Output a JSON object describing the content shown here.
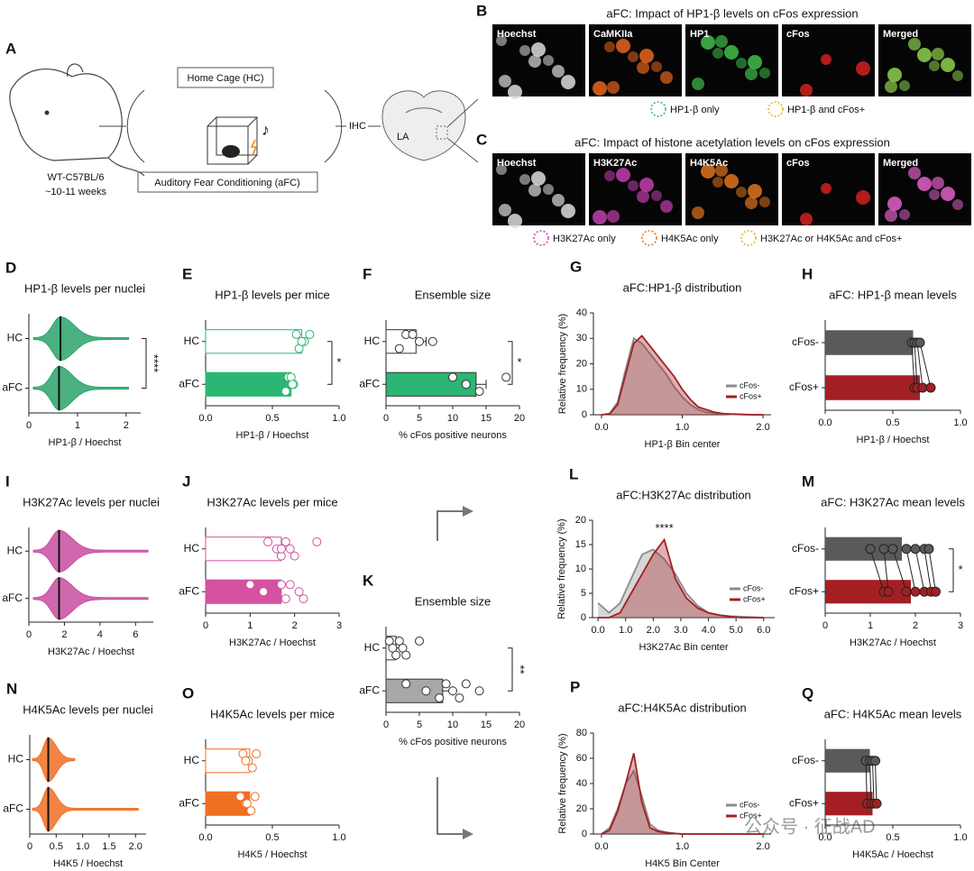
{
  "schematic": {
    "panel": "A",
    "mouse": [
      "WT-C57BL/6",
      "~10-11 weeks"
    ],
    "home_cage": "Home Cage (HC)",
    "afc": "Auditory Fear Conditioning (aFC)",
    "ihc": "IHC",
    "la": "LA"
  },
  "micrographs": [
    {
      "panel": "B",
      "title": "aFC: Impact of HP1-β levels on cFos expression",
      "labels": [
        "Hoechst",
        "CaMKIIa",
        "HP1",
        "cFos",
        "Merged"
      ],
      "legend": [
        "HP1-β only",
        "HP1-β and cFos+"
      ]
    },
    {
      "panel": "C",
      "title": "aFC: Impact of histone acetylation levels on cFos expression",
      "labels": [
        "Hoechst",
        "H3K27Ac",
        "H4K5Ac",
        "cFos",
        "Merged"
      ],
      "legend": [
        "H3K27Ac only",
        "H4K5Ac only",
        "H3K27Ac or H4K5Ac and cFos+"
      ]
    }
  ],
  "watermark": "公众号 · 征战AD",
  "chart_data": [
    {
      "panel": "D",
      "type": "violin",
      "title": "HP1-β levels per nuclei",
      "categories": [
        "HC",
        "aFC"
      ],
      "medians": [
        0.65,
        0.62
      ],
      "extents": [
        2.05,
        2.05
      ],
      "color": "#2ca36b",
      "xlabel": "HP1-β / Hoechst",
      "xlim": [
        0,
        2.3
      ],
      "xticks": [
        0,
        1,
        2
      ],
      "annotation": "****"
    },
    {
      "panel": "E",
      "type": "bar",
      "title": "HP1-β levels per mice",
      "categories": [
        "HC",
        "aFC"
      ],
      "values": [
        0.72,
        0.64
      ],
      "colors": [
        "#ffffff",
        "#2bb673"
      ],
      "edgecolor": "#2bb673",
      "points": [
        [
          0.68,
          0.74,
          0.7,
          0.78,
          0.72
        ],
        [
          0.62,
          0.66,
          0.6,
          0.64,
          0.65
        ]
      ],
      "xlabel": "HP1-β / Hoechst",
      "xlim": [
        0,
        1
      ],
      "xticks": [
        {
          "value": 0,
          "label": "0.0"
        },
        0.5,
        {
          "value": 1,
          "label": "1.0"
        }
      ],
      "annotation": "*"
    },
    {
      "panel": "F",
      "type": "bar",
      "title": "Ensemble size",
      "categories": [
        "HC",
        "aFC"
      ],
      "values": [
        4.5,
        13.5
      ],
      "errors": [
        1.5,
        1.5
      ],
      "colors": [
        "#ffffff",
        "#2bb673"
      ],
      "edgecolor": "#333333",
      "points": [
        [
          3,
          7,
          2,
          4,
          5
        ],
        [
          10,
          12,
          14,
          18
        ]
      ],
      "xlabel": "% cFos positive neurons",
      "xlim": [
        0,
        20
      ],
      "xticks": [
        0,
        5,
        10,
        15,
        20
      ],
      "annotation": "*"
    },
    {
      "panel": "G",
      "type": "area",
      "title": "aFC:HP1-β distribution",
      "x": [
        0,
        0.1,
        0.2,
        0.3,
        0.4,
        0.5,
        0.6,
        0.7,
        0.8,
        0.9,
        1.0,
        1.1,
        1.2,
        1.3,
        1.4,
        1.5,
        1.6,
        1.7,
        1.8,
        1.9,
        2.0
      ],
      "series": [
        {
          "name": "cFos-",
          "color": "#8c8c8c",
          "values": [
            0,
            0.5,
            5,
            18,
            30,
            28,
            24,
            20,
            16,
            11,
            7,
            4,
            2,
            1,
            0.6,
            0.3,
            0.2,
            0.1,
            0,
            0,
            0
          ]
        },
        {
          "name": "cFos+",
          "color": "#a31f24",
          "values": [
            0,
            0.3,
            4,
            16,
            28,
            31,
            27,
            23,
            19,
            15,
            10,
            6,
            3,
            2,
            1,
            0.5,
            0.3,
            0.2,
            0.1,
            0,
            0
          ]
        }
      ],
      "xlabel": "HP1-β Bin center",
      "ylabel": "Relative frequency (%)",
      "xlim": [
        -0.1,
        2.1
      ],
      "ylim": [
        0,
        40
      ],
      "xticks": [
        {
          "value": 0,
          "label": "0.0"
        },
        {
          "value": 1,
          "label": "1.0"
        },
        {
          "value": 2,
          "label": "2.0"
        }
      ],
      "yticks": [
        0,
        10,
        20,
        30,
        40
      ],
      "legend": "lower right"
    },
    {
      "panel": "H",
      "type": "paired",
      "title": "aFC: HP1-β mean levels",
      "categories": [
        "cFos-",
        "cFos+"
      ],
      "values": [
        0.65,
        0.7
      ],
      "colors": [
        "#5a5a5a",
        "#a31f24"
      ],
      "points": [
        [
          0.64,
          0.66,
          0.68,
          0.7
        ],
        [
          0.66,
          0.68,
          0.72,
          0.78
        ]
      ],
      "xlabel": "HP1-β / Hoechst",
      "xlim": [
        0,
        1
      ],
      "xticks": [
        {
          "value": 0,
          "label": "0.0"
        },
        0.5,
        {
          "value": 1,
          "label": "1.0"
        }
      ]
    },
    {
      "panel": "I",
      "type": "violin",
      "title": "H3K27Ac levels per nuclei",
      "categories": [
        "HC",
        "aFC"
      ],
      "medians": [
        1.7,
        1.7
      ],
      "extents": [
        6.7,
        6.7
      ],
      "color": "#c84ea0",
      "xlabel": "H3K27Ac / Hoechst",
      "xlim": [
        0,
        7
      ],
      "xticks": [
        0,
        2,
        4,
        6
      ]
    },
    {
      "panel": "J",
      "type": "bar",
      "title": "H3K27Ac levels per mice",
      "categories": [
        "HC",
        "aFC"
      ],
      "values": [
        1.7,
        1.7
      ],
      "colors": [
        "#ffffff",
        "#d4529f"
      ],
      "edgecolor": "#d4529f",
      "points": [
        [
          1.4,
          1.6,
          1.7,
          1.8,
          1.9,
          2.0,
          2.5,
          1.7
        ],
        [
          1.0,
          1.3,
          1.8,
          1.9,
          2.1,
          2.2,
          1.7
        ]
      ],
      "xlabel": "H3K27Ac / Hoechst",
      "xlim": [
        0,
        3
      ],
      "xticks": [
        0,
        1,
        2,
        3
      ]
    },
    {
      "panel": "K",
      "type": "bar",
      "title": "Ensemble size",
      "categories": [
        "HC",
        "aFC"
      ],
      "values": [
        1.5,
        8.5
      ],
      "errors": [
        0.8,
        1.5
      ],
      "colors": [
        "#ffffff",
        "#a8a8a8"
      ],
      "edgecolor": "#333333",
      "points": [
        [
          0.5,
          1,
          1.5,
          2,
          2.5,
          3,
          5
        ],
        [
          3,
          6,
          8,
          9,
          10,
          11,
          12,
          14
        ]
      ],
      "xlabel": "% cFos positive neurons",
      "xlim": [
        0,
        20
      ],
      "xticks": [
        0,
        5,
        10,
        15,
        20
      ],
      "annotation": "**"
    },
    {
      "panel": "L",
      "type": "area",
      "title": "aFC:H3K27Ac distribution",
      "x": [
        0,
        0.4,
        0.8,
        1.2,
        1.6,
        2.0,
        2.4,
        2.8,
        3.2,
        3.6,
        4.0,
        4.4,
        4.8,
        5.2,
        5.6,
        6.0
      ],
      "series": [
        {
          "name": "cFos-",
          "color": "#8c8c8c",
          "values": [
            3,
            1,
            3,
            8,
            13,
            14,
            12,
            9,
            5,
            2.5,
            1,
            0.5,
            0.3,
            0.2,
            0.1,
            0
          ]
        },
        {
          "name": "cFos+",
          "color": "#a31f24",
          "values": [
            0,
            0,
            1,
            5,
            9,
            13,
            16,
            8,
            4,
            2,
            1,
            0.5,
            0.2,
            0,
            0,
            0
          ]
        }
      ],
      "xlabel": "H3K27Ac Bin center",
      "ylabel": "Relative frequency (%)",
      "xlim": [
        -0.2,
        6.4
      ],
      "ylim": [
        0,
        20
      ],
      "xticks": [
        {
          "value": 0,
          "label": "0.0"
        },
        {
          "value": 1,
          "label": "1.0"
        },
        {
          "value": 2,
          "label": "2.0"
        },
        {
          "value": 3,
          "label": "3.0"
        },
        {
          "value": 4,
          "label": "4.0"
        },
        {
          "value": 5,
          "label": "5.0"
        },
        {
          "value": 6,
          "label": "6.0"
        }
      ],
      "yticks": [
        0,
        5,
        10,
        15,
        20
      ],
      "legend": "lower right",
      "annotation": "****"
    },
    {
      "panel": "M",
      "type": "paired",
      "title": "aFC: H3K27Ac mean levels",
      "categories": [
        "cFos-",
        "cFos+"
      ],
      "values": [
        1.7,
        1.9
      ],
      "colors": [
        "#5a5a5a",
        "#a31f24"
      ],
      "points": [
        [
          1.0,
          1.3,
          1.5,
          1.8,
          2.0,
          2.2,
          2.3
        ],
        [
          1.3,
          1.4,
          1.8,
          2.0,
          2.2,
          2.35,
          2.45
        ]
      ],
      "xlabel": "H3K27Ac / Hoechst",
      "xlim": [
        0,
        3
      ],
      "xticks": [
        0,
        1,
        2,
        3
      ],
      "annotation": "*"
    },
    {
      "panel": "N",
      "type": "violin",
      "title": "H4K5Ac levels per nuclei",
      "categories": [
        "HC",
        "aFC"
      ],
      "medians": [
        0.35,
        0.35
      ],
      "extents": [
        0.85,
        2.05
      ],
      "color": "#f07023",
      "xlabel": "H4K5 / Hoechst",
      "xlim": [
        0,
        2.2
      ],
      "xticks": [
        0,
        0.5,
        {
          "value": 1,
          "label": "1.0"
        },
        1.5,
        {
          "value": 2,
          "label": "2.0"
        }
      ]
    },
    {
      "panel": "O",
      "type": "bar",
      "title": "H4K5Ac levels per mice",
      "categories": [
        "HC",
        "aFC"
      ],
      "values": [
        0.33,
        0.33
      ],
      "colors": [
        "#ffffff",
        "#f07023"
      ],
      "edgecolor": "#f07023",
      "points": [
        [
          0.28,
          0.32,
          0.35,
          0.38,
          0.3
        ],
        [
          0.26,
          0.3,
          0.34,
          0.37,
          0.31
        ]
      ],
      "xlabel": "H4K5 / Hoechst",
      "xlim": [
        0,
        1
      ],
      "xticks": [
        {
          "value": 0,
          "label": "0.0"
        },
        0.5,
        {
          "value": 1,
          "label": "1.0"
        }
      ]
    },
    {
      "panel": "P",
      "type": "area",
      "title": "aFC:H4K5Ac distribution",
      "x": [
        0,
        0.1,
        0.2,
        0.3,
        0.4,
        0.5,
        0.6,
        0.7,
        0.8,
        0.9,
        1.0,
        1.1,
        1.2,
        1.3,
        1.4,
        1.5,
        1.6,
        1.7,
        1.8,
        1.9,
        2.0
      ],
      "series": [
        {
          "name": "cFos-",
          "color": "#8c8c8c",
          "values": [
            0,
            5,
            20,
            40,
            50,
            30,
            8,
            3,
            1.5,
            0.5,
            0,
            0,
            0,
            0,
            0,
            0,
            0,
            0,
            0,
            0,
            0
          ]
        },
        {
          "name": "cFos+",
          "color": "#a31f24",
          "values": [
            0,
            3,
            18,
            40,
            64,
            25,
            5,
            2,
            1,
            0.5,
            0,
            0,
            0,
            0,
            0,
            0,
            0,
            0,
            0,
            0,
            0
          ]
        }
      ],
      "xlabel": "H4K5 Bin Center",
      "ylabel": "Relative frequency (%)",
      "xlim": [
        -0.1,
        2.1
      ],
      "ylim": [
        0,
        80
      ],
      "xticks": [
        {
          "value": 0,
          "label": "0.0"
        },
        {
          "value": 1,
          "label": "1.0"
        },
        {
          "value": 2,
          "label": "2.0"
        }
      ],
      "yticks": [
        0,
        20,
        40,
        60,
        80
      ],
      "legend": "lower right"
    },
    {
      "panel": "Q",
      "type": "paired",
      "title": "aFC: H4K5Ac mean levels",
      "categories": [
        "cFos-",
        "cFos+"
      ],
      "values": [
        0.33,
        0.35
      ],
      "colors": [
        "#5a5a5a",
        "#a31f24"
      ],
      "points": [
        [
          0.3,
          0.33,
          0.35,
          0.37
        ],
        [
          0.31,
          0.34,
          0.36,
          0.38
        ]
      ],
      "xlabel": "H4K5Ac / Hoechst",
      "xlim": [
        0,
        1
      ],
      "xticks": [
        {
          "value": 0,
          "label": "0.0"
        },
        0.5,
        {
          "value": 1,
          "label": "1.0"
        }
      ]
    }
  ]
}
